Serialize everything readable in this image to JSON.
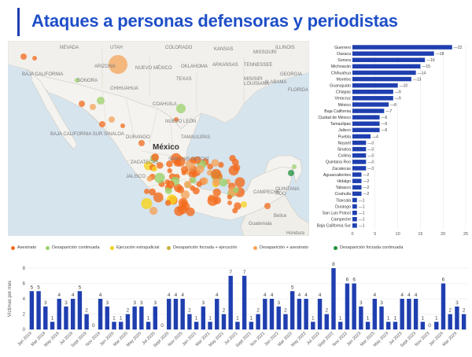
{
  "title": "Ataques a personas defensoras y periodistas",
  "map": {
    "labels": [
      "NEVADA",
      "UTAH",
      "COLORADO",
      "KANSAS",
      "MISSOURI",
      "ILLINOIS",
      "ARIZONA",
      "NUEVO MÉXICO",
      "OKLAHOMA",
      "ARKANSAS",
      "TENNESSEE",
      "MISISIPI",
      "ALABAMA",
      "GEORGIA",
      "TEXAS",
      "LOUISIANA",
      "FLORIDA",
      "BAJA CALIFORNIA",
      "SONORA",
      "CHIHUAHUA",
      "COAHUILA",
      "NUEVO LEÓN",
      "BAJA CALIFORNIA SUR",
      "SINALOA",
      "DURANGO",
      "TAMAULIPAS",
      "México",
      "SAN LUIS POTOSÍ",
      "ZACATECAS",
      "JALISCO",
      "CAMPECHE",
      "QUINTANA ROO",
      "Belice",
      "Guatemala",
      "Hondura"
    ],
    "label_country": "México"
  },
  "legend": {
    "items": [
      {
        "label": "Asesinato",
        "color": "#f26b1d"
      },
      {
        "label": "Desaparición continuada",
        "color": "#9bd16b"
      },
      {
        "label": "Ejecución extrajudicial",
        "color": "#f7d21b"
      },
      {
        "label": "Desaparición forzada + ejecución",
        "color": "#c6b23a"
      },
      {
        "label": "Desaparición + asesinato",
        "color": "#f4a45a"
      },
      {
        "label": "Desaparición forzada continuada",
        "color": "#1e8f3e"
      }
    ]
  },
  "chart_data": [
    {
      "type": "bar",
      "orientation": "horizontal",
      "title": "",
      "categories": [
        "Guerrero",
        "Oaxaca",
        "Sonora",
        "Michoacán",
        "Chihuahua",
        "Morelos",
        "Guanajuato",
        "Chiapas",
        "Veracruz",
        "México",
        "Baja California",
        "Ciudad de México",
        "Tamaulipas",
        "Jalisco",
        "Puebla",
        "Nayarit",
        "Sinaloa",
        "Colima",
        "Quintana Roo",
        "Zacatecas",
        "Aguascalientes",
        "Hidalgo",
        "Tabasco",
        "Coahuila",
        "Tlaxcala",
        "Durango",
        "San Luis Potosí",
        "Campeche",
        "Baja California Sur"
      ],
      "values": [
        22,
        18,
        16,
        15,
        14,
        13,
        10,
        9,
        9,
        8,
        7,
        6,
        6,
        6,
        4,
        3,
        3,
        3,
        3,
        3,
        2,
        2,
        2,
        2,
        1,
        1,
        1,
        1,
        1
      ],
      "xlim": [
        0,
        25
      ],
      "xticks": [
        0,
        5,
        10,
        15,
        20,
        25
      ],
      "color": "#1f3fb0"
    },
    {
      "type": "bar",
      "title": "",
      "ylabel": "Víctimas por mes",
      "xlabel": "",
      "ylim": [
        0,
        8
      ],
      "yticks": [
        0,
        2,
        4,
        6,
        8
      ],
      "color": "#1f3fb0",
      "categories": [
        "Jan 2019",
        "Feb 2019",
        "Mar 2019",
        "Apr 2019",
        "May 2019",
        "Jun 2019",
        "Jul 2019",
        "Aug 2019",
        "Sept 2019",
        "Oct 2019",
        "Nov 2019",
        "Dec 2019",
        "Jan 2020",
        "Feb 2020",
        "Mar 2020",
        "Apr 2020",
        "May 2020",
        "Jun 2020",
        "Jul 2020",
        "Aug 2020",
        "Sept 2020",
        "Oct 2020",
        "Nov 2020",
        "Dec 2020",
        "Jan 2021",
        "Feb 2021",
        "Mar 2021",
        "Apr 2021",
        "May 2021",
        "Jun 2021",
        "Jul 2021",
        "Aug 2021",
        "Sept 2021",
        "Oct 2021",
        "Nov 2021",
        "Dec 2021",
        "Jan 2022",
        "Feb 2022",
        "Mar 2022",
        "Apr 2022",
        "May 2022",
        "Jun 2022",
        "Jul 2022",
        "Aug 2022",
        "Sept 2022",
        "Oct 2022",
        "Nov 2022",
        "Dec 2022",
        "Jan 2023",
        "Feb 2023",
        "Mar 2023",
        "Apr 2023",
        "May 2023",
        "Jun 2023",
        "Jul 2023",
        "Aug 2023",
        "Sept 2023",
        "Oct 2023",
        "Nov 2023",
        "Dec 2023",
        "Jan 2024",
        "Feb 2024",
        "Mar 2024",
        "Apr 2024"
      ],
      "tick_labels": [
        "Jan 2019",
        "Mar 2019",
        "May 2019",
        "Jul 2019",
        "Sept 2019",
        "Nov 2019",
        "Jan 2020",
        "Mar 2020",
        "May 2020",
        "Jul 2020",
        "Sept 2020",
        "Nov 2020",
        "Jan 2021",
        "Mar 2021",
        "May 2021",
        "Jul 2021",
        "Sept 2021",
        "Nov 2021",
        "Jan 2022",
        "Mar 2022",
        "May 2022",
        "Jul 2022",
        "Sept 2022",
        "Nov 2022",
        "Jan 2023",
        "Mar 2023",
        "May 2023",
        "Jul 2023",
        "Sept 2023",
        "Nov 2023",
        "Jan 2024",
        "Mar 2024"
      ],
      "values": [
        5,
        5,
        3,
        1,
        4,
        3,
        4,
        5,
        2,
        0,
        4,
        3,
        1,
        1,
        2,
        3,
        3,
        1,
        3,
        0,
        4,
        4,
        4,
        2,
        1,
        3,
        1,
        4,
        2,
        7,
        1,
        7,
        1,
        2,
        4,
        4,
        3,
        2,
        5,
        4,
        4,
        1,
        4,
        2,
        8,
        1,
        6,
        6,
        3,
        1,
        4,
        3,
        1,
        1,
        4,
        4,
        4,
        1,
        0,
        1,
        6,
        2,
        3,
        2
      ]
    }
  ]
}
